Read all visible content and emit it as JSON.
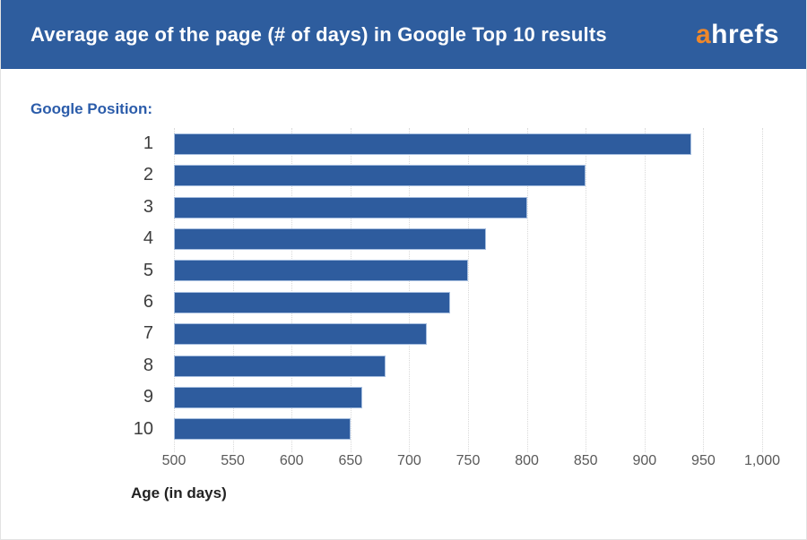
{
  "header": {
    "title": "Average age of the page (# of days) in Google Top 10 results",
    "logo": {
      "prefix": "a",
      "rest": "hrefs"
    }
  },
  "chart_data": {
    "type": "bar",
    "orientation": "horizontal",
    "title": "Average age of the page (# of days) in Google Top 10 results",
    "ylabel": "Google Position:",
    "xlabel": "Age (in days)",
    "categories": [
      "1",
      "2",
      "3",
      "4",
      "5",
      "6",
      "7",
      "8",
      "9",
      "10"
    ],
    "values": [
      940,
      850,
      800,
      765,
      750,
      735,
      715,
      680,
      660,
      650
    ],
    "xlim": [
      500,
      1000
    ],
    "xticks": [
      500,
      550,
      600,
      650,
      700,
      750,
      800,
      850,
      900,
      950,
      1000
    ],
    "xtick_labels": [
      "500",
      "550",
      "600",
      "650",
      "700",
      "750",
      "800",
      "850",
      "900",
      "950",
      "1,000"
    ],
    "grid": "vertical-dotted",
    "legend": "none"
  },
  "colors": {
    "header_bg": "#2e5d9e",
    "header_text": "#ffffff",
    "logo_orange": "#f0882a",
    "bar_fill": "#2e5c9e",
    "bar_border": "#a6bedf",
    "axis_label_text": "#595959",
    "category_text": "#3d3d3d",
    "ylabel_text": "#2b5caa",
    "gridline": "#d9d9d9"
  }
}
